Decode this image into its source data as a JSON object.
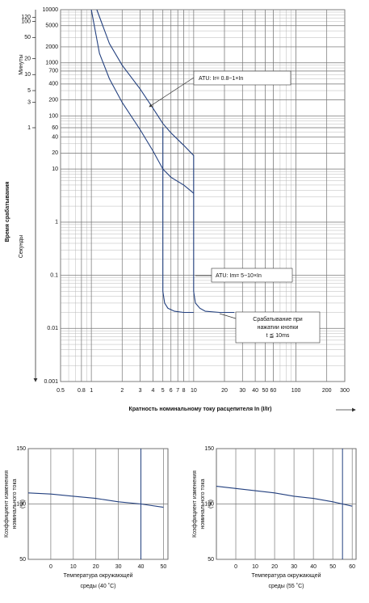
{
  "chart_data": [
    {
      "type": "line",
      "log_x": true,
      "log_y": true,
      "grid": true,
      "color": "#23407f",
      "ylabel": "Время срабатывания",
      "y_unit_label": "Секунды",
      "y2_unit_label": "Минуты",
      "xlabel": "Кратность номинальному току расцепителя In (I/Ir)",
      "xlim": [
        0.5,
        300
      ],
      "xticks": [
        0.5,
        0.8,
        1,
        2,
        3,
        4,
        5,
        6,
        7,
        8,
        10,
        20,
        30,
        40,
        50,
        60,
        100,
        200,
        300
      ],
      "ylim": [
        0.001,
        10000
      ],
      "yticks": [
        10000,
        5000,
        2000,
        1000,
        700,
        400,
        200,
        100,
        60,
        40,
        20,
        10,
        1,
        0.1,
        0.01,
        0.001
      ],
      "y2lim": [
        1.66667e-05,
        166.6667
      ],
      "y2ticks": [
        120,
        100,
        50,
        20,
        10,
        5,
        3,
        1
      ],
      "series": [
        {
          "x": [
            1.13,
            1.5,
            2,
            3,
            4,
            5,
            6,
            8,
            10,
            10,
            10.4,
            11.5,
            13,
            18,
            25
          ],
          "values": [
            10000,
            2300,
            900,
            320,
            140,
            72,
            48,
            28,
            18,
            0.05,
            0.03,
            0.024,
            0.021,
            0.02,
            0.02
          ]
        },
        {
          "x": [
            1.0,
            1.2,
            1.5,
            2,
            3,
            4,
            5,
            6,
            8,
            10
          ],
          "values": [
            10000,
            1500,
            500,
            180,
            55,
            22,
            10,
            7,
            5,
            3.5
          ]
        },
        {
          "x": [
            5,
            5,
            5.2,
            5.6,
            6.5,
            8,
            10
          ],
          "values": [
            61,
            0.05,
            0.03,
            0.024,
            0.021,
            0.02,
            0.02
          ]
        }
      ],
      "annotations": [
        {
          "lines": [
            "ATU: Ir= 0.8~1×In"
          ]
        },
        {
          "lines": [
            "ATU: Im= 5~10×In"
          ]
        },
        {
          "lines": [
            "Срабатывание при",
            "нажатии кнопки",
            "t ≦ 10ms"
          ]
        }
      ]
    },
    {
      "type": "line",
      "grid": true,
      "color": "#23407f",
      "ylabel": [
        "Коэффициент изменения",
        "номинального тока",
        "(%)"
      ],
      "xlabel": [
        "Температура окружающей",
        "среды (40 ˚C)"
      ],
      "xlim": [
        -10,
        52
      ],
      "xticks": [
        0,
        10,
        20,
        30,
        40,
        50
      ],
      "ylim": [
        50,
        150
      ],
      "yticks": [
        50,
        100,
        150
      ],
      "x": [
        -10,
        0,
        10,
        20,
        30,
        40,
        50
      ],
      "values": [
        110,
        109,
        107,
        105,
        102,
        100,
        97
      ],
      "ref_x": 40
    },
    {
      "type": "line",
      "grid": true,
      "color": "#23407f",
      "ylabel": [
        "Коэффициент изменения",
        "номинального тока",
        "(%)"
      ],
      "xlabel": [
        "Температура окружающей",
        "среды (55 ˚C)"
      ],
      "xlim": [
        -10,
        62
      ],
      "xticks": [
        0,
        10,
        20,
        30,
        40,
        50,
        60
      ],
      "ylim": [
        50,
        150
      ],
      "yticks": [
        50,
        100,
        150
      ],
      "x": [
        -10,
        0,
        10,
        20,
        30,
        40,
        50,
        55,
        60
      ],
      "values": [
        116,
        114,
        112,
        110,
        107,
        105,
        102,
        100,
        98
      ],
      "ref_x": 55
    }
  ]
}
